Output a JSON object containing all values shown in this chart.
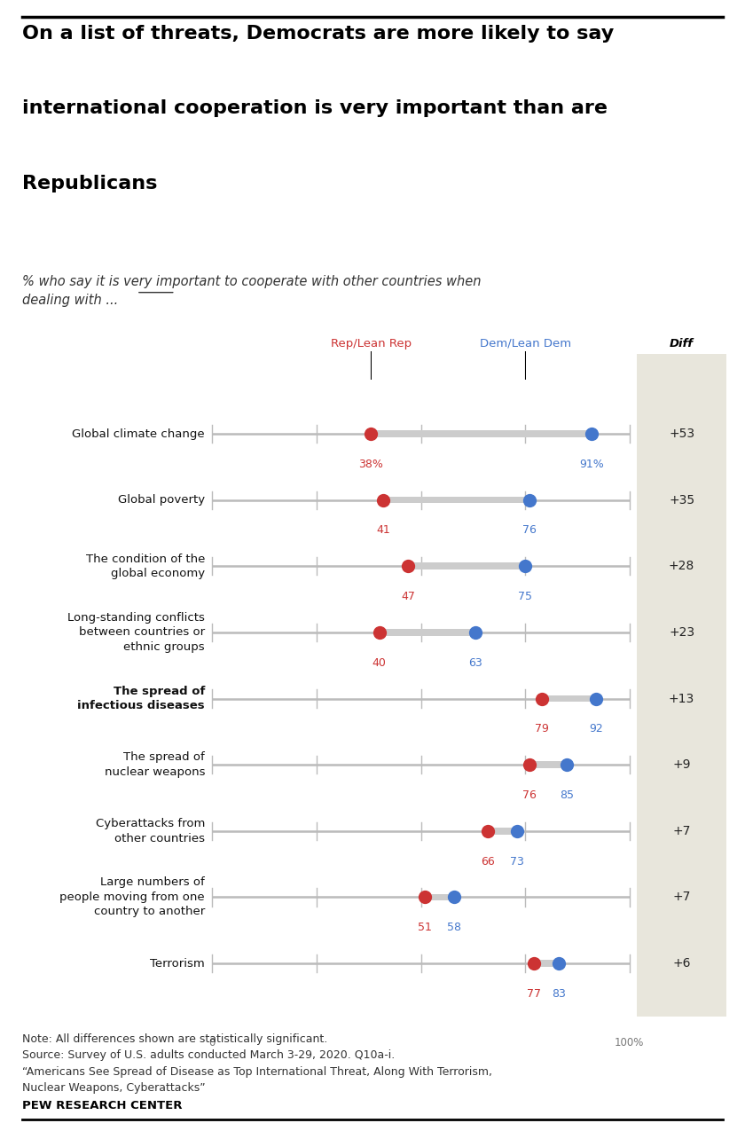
{
  "title_line1": "On a list of threats, Democrats are more likely to say",
  "title_line2": "international cooperation is very important than are",
  "title_line3": "Republicans",
  "subtitle": "% who say it is very important to cooperate with other countries when\ndealing with ...",
  "subtitle_underline_word": "very",
  "categories": [
    "Global climate change",
    "Global poverty",
    "The condition of the\nglobal economy",
    "Long-standing conflicts\nbetween countries or\nethnic groups",
    "The spread of\ninfectious diseases",
    "The spread of\nnuclear weapons",
    "Cyberattacks from\nother countries",
    "Large numbers of\npeople moving from one\ncountry to another",
    "Terrorism"
  ],
  "bold_indices": [
    4
  ],
  "rep_values": [
    38,
    41,
    47,
    40,
    79,
    76,
    66,
    51,
    77
  ],
  "dem_values": [
    91,
    76,
    75,
    63,
    92,
    85,
    73,
    58,
    83
  ],
  "rep_pct_labels": [
    "38%",
    "41",
    "47",
    "40",
    "79",
    "76",
    "66",
    "51",
    "77"
  ],
  "dem_pct_labels": [
    "91%",
    "76",
    "75",
    "63",
    "92",
    "85",
    "73",
    "58",
    "83"
  ],
  "diffs": [
    "+53",
    "+35",
    "+28",
    "+23",
    "+13",
    "+9",
    "+7",
    "+7",
    "+6"
  ],
  "rep_color": "#cc3333",
  "dem_color": "#4477cc",
  "line_color": "#bbbbbb",
  "band_color": "#cccccc",
  "rep_label": "Rep/Lean Rep",
  "dem_label": "Dem/Lean Dem",
  "diff_label": "Diff",
  "note_text": "Note: All differences shown are statistically significant.\nSource: Survey of U.S. adults conducted March 3-29, 2020. Q10a-i.\n“Americans See Spread of Disease as Top International Threat, Along With Terrorism,\nNuclear Weapons, Cyberattacks”",
  "footer_text": "PEW RESEARCH CENTER",
  "diff_bg_color": "#e8e6dc",
  "background_color": "#ffffff",
  "marker_size": 11
}
